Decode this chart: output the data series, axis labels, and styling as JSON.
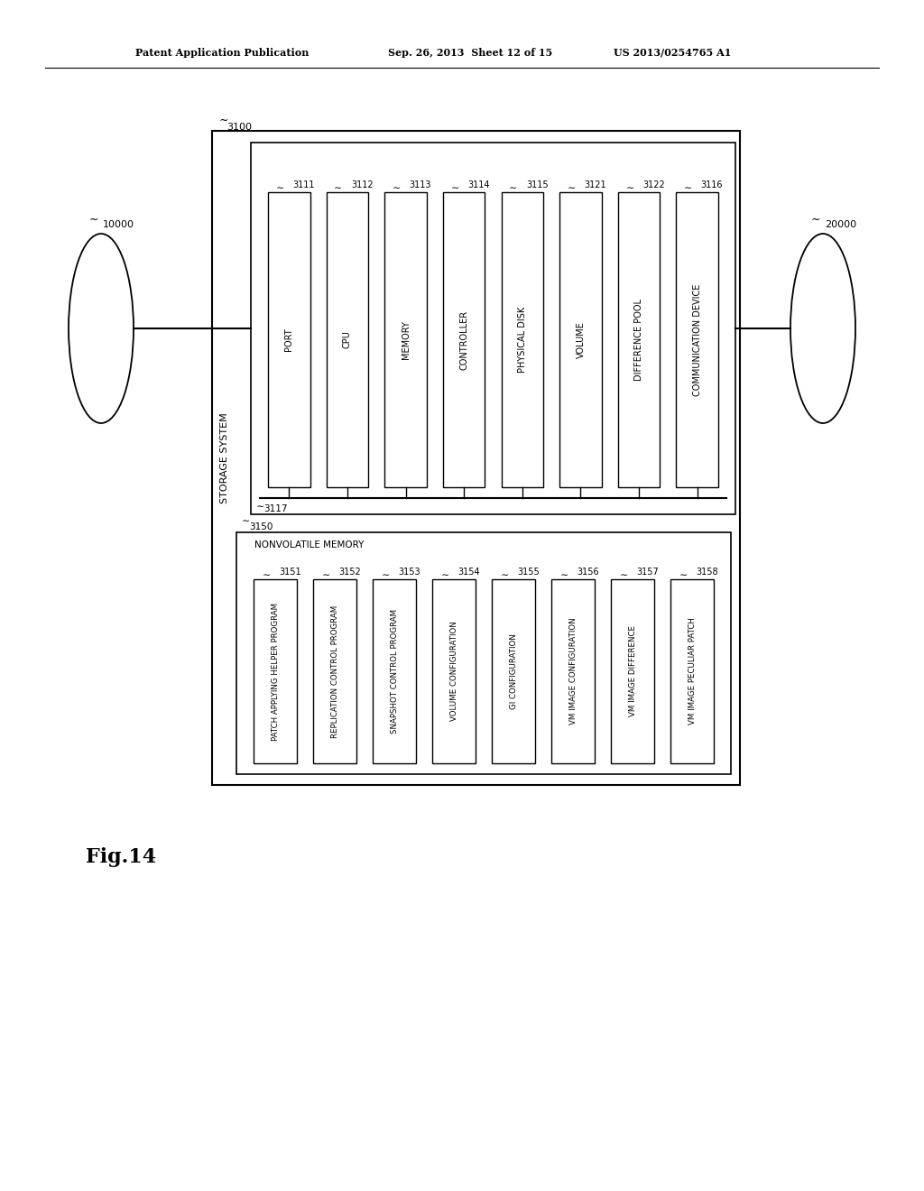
{
  "title_header_left": "Patent Application Publication",
  "title_header_mid": "Sep. 26, 2013  Sheet 12 of 15",
  "title_header_right": "US 2013/0254765 A1",
  "fig_label": "Fig.14",
  "bg_color": "#ffffff",
  "line_color": "#000000",
  "text_color": "#000000",
  "storage_system_label": "STORAGE SYSTEM",
  "ref_3100": "3100",
  "ref_3117": "3117",
  "upper_section": {
    "components": [
      {
        "label": "PORT",
        "ref": "3111"
      },
      {
        "label": "CPU",
        "ref": "3112"
      },
      {
        "label": "MEMORY",
        "ref": "3113"
      },
      {
        "label": "CONTROLLER",
        "ref": "3114"
      },
      {
        "label": "PHYSICAL DISK",
        "ref": "3115"
      },
      {
        "label": "VOLUME",
        "ref": "3121"
      },
      {
        "label": "DIFFERENCE POOL",
        "ref": "3122"
      },
      {
        "label": "COMMUNICATION DEVICE",
        "ref": "3116"
      }
    ]
  },
  "lower_section": {
    "ref_3150": "3150",
    "nvm_label": "NONVOLATILE MEMORY",
    "components": [
      {
        "label": "PATCH APPLYING HELPER PROGRAM",
        "ref": "3151"
      },
      {
        "label": "REPLICATION CONTROL PROGRAM",
        "ref": "3152"
      },
      {
        "label": "SNAPSHOT CONTROL PROGRAM",
        "ref": "3153"
      },
      {
        "label": "VOLUME CONFIGURATION",
        "ref": "3154"
      },
      {
        "label": "GI CONFIGURATION",
        "ref": "3155"
      },
      {
        "label": "VM IMAGE CONFIGURATION",
        "ref": "3156"
      },
      {
        "label": "VM IMAGE DIFFERENCE",
        "ref": "3157"
      },
      {
        "label": "VM IMAGE PECULIAR PATCH",
        "ref": "3158"
      }
    ]
  },
  "left_net_label": "10000",
  "right_net_label": "20000"
}
